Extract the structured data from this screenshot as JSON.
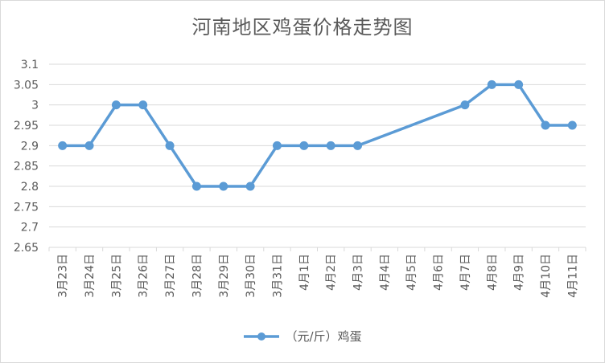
{
  "chart_data": {
    "type": "line",
    "title": "河南地区鸡蛋价格走势图",
    "categories": [
      "3月23日",
      "3月24日",
      "3月25日",
      "3月26日",
      "3月27日",
      "3月28日",
      "3月29日",
      "3月30日",
      "3月31日",
      "4月1日",
      "4月2日",
      "4月3日",
      "4月4日",
      "4月5日",
      "4月6日",
      "4月7日",
      "4月8日",
      "4月9日",
      "4月10日",
      "4月11日"
    ],
    "series": [
      {
        "name": "（元/斤）鸡蛋",
        "color": "#5b9bd5",
        "values": [
          2.9,
          2.9,
          3.0,
          3.0,
          2.9,
          2.8,
          2.8,
          2.8,
          2.9,
          2.9,
          2.9,
          2.9,
          null,
          null,
          null,
          3.0,
          3.05,
          3.05,
          2.95,
          2.95
        ]
      }
    ],
    "ylim": [
      2.65,
      3.1
    ],
    "yticks": [
      "2.65",
      "2.7",
      "2.75",
      "2.8",
      "2.85",
      "2.9",
      "2.95",
      "3",
      "3.05",
      "3.1"
    ],
    "grid": true,
    "legend_position": "bottom",
    "gap_handling": "connect"
  }
}
